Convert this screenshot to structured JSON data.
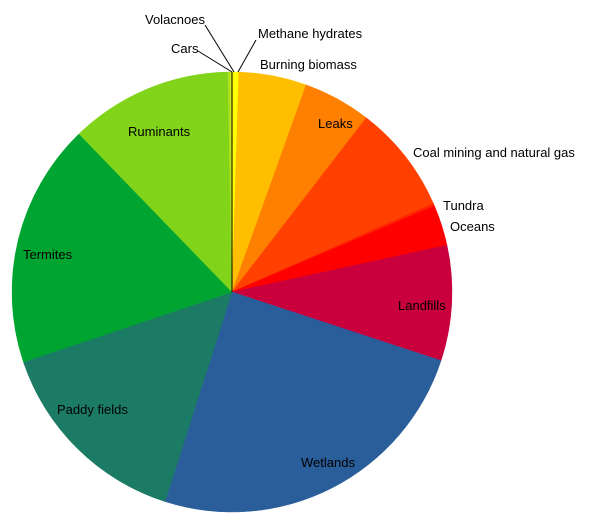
{
  "chart_data": {
    "type": "pie",
    "title": "",
    "start_angle_deg": 0,
    "direction": "clockwise",
    "slices": [
      {
        "label": "Methane hydrates",
        "value": 0.5,
        "color": "#ffff00"
      },
      {
        "label": "Burning biomass",
        "value": 5.0,
        "color": "#ffbf00"
      },
      {
        "label": "Leaks",
        "value": 5.0,
        "color": "#ff8000"
      },
      {
        "label": "Coal mining and natural gas",
        "value": 8.0,
        "color": "#ff4000"
      },
      {
        "label": "Tundra",
        "value": 0.2,
        "color": "#ff2200"
      },
      {
        "label": "Oceans",
        "value": 3.0,
        "color": "#ff0000"
      },
      {
        "label": "Landfills",
        "value": 8.5,
        "color": "#c9003c"
      },
      {
        "label": "Wetlands",
        "value": 25.0,
        "color": "#2a5e9a"
      },
      {
        "label": "Paddy fields",
        "value": 15.0,
        "color": "#1b7b65"
      },
      {
        "label": "Termites",
        "value": 18.0,
        "color": "#00a531"
      },
      {
        "label": "Ruminants",
        "value": 12.0,
        "color": "#81d41a"
      },
      {
        "label": "Cars",
        "value": 0.15,
        "color": "#aade1e"
      },
      {
        "label": "Volacnoes",
        "value": 0.15,
        "color": "#d4ea1c"
      }
    ]
  }
}
